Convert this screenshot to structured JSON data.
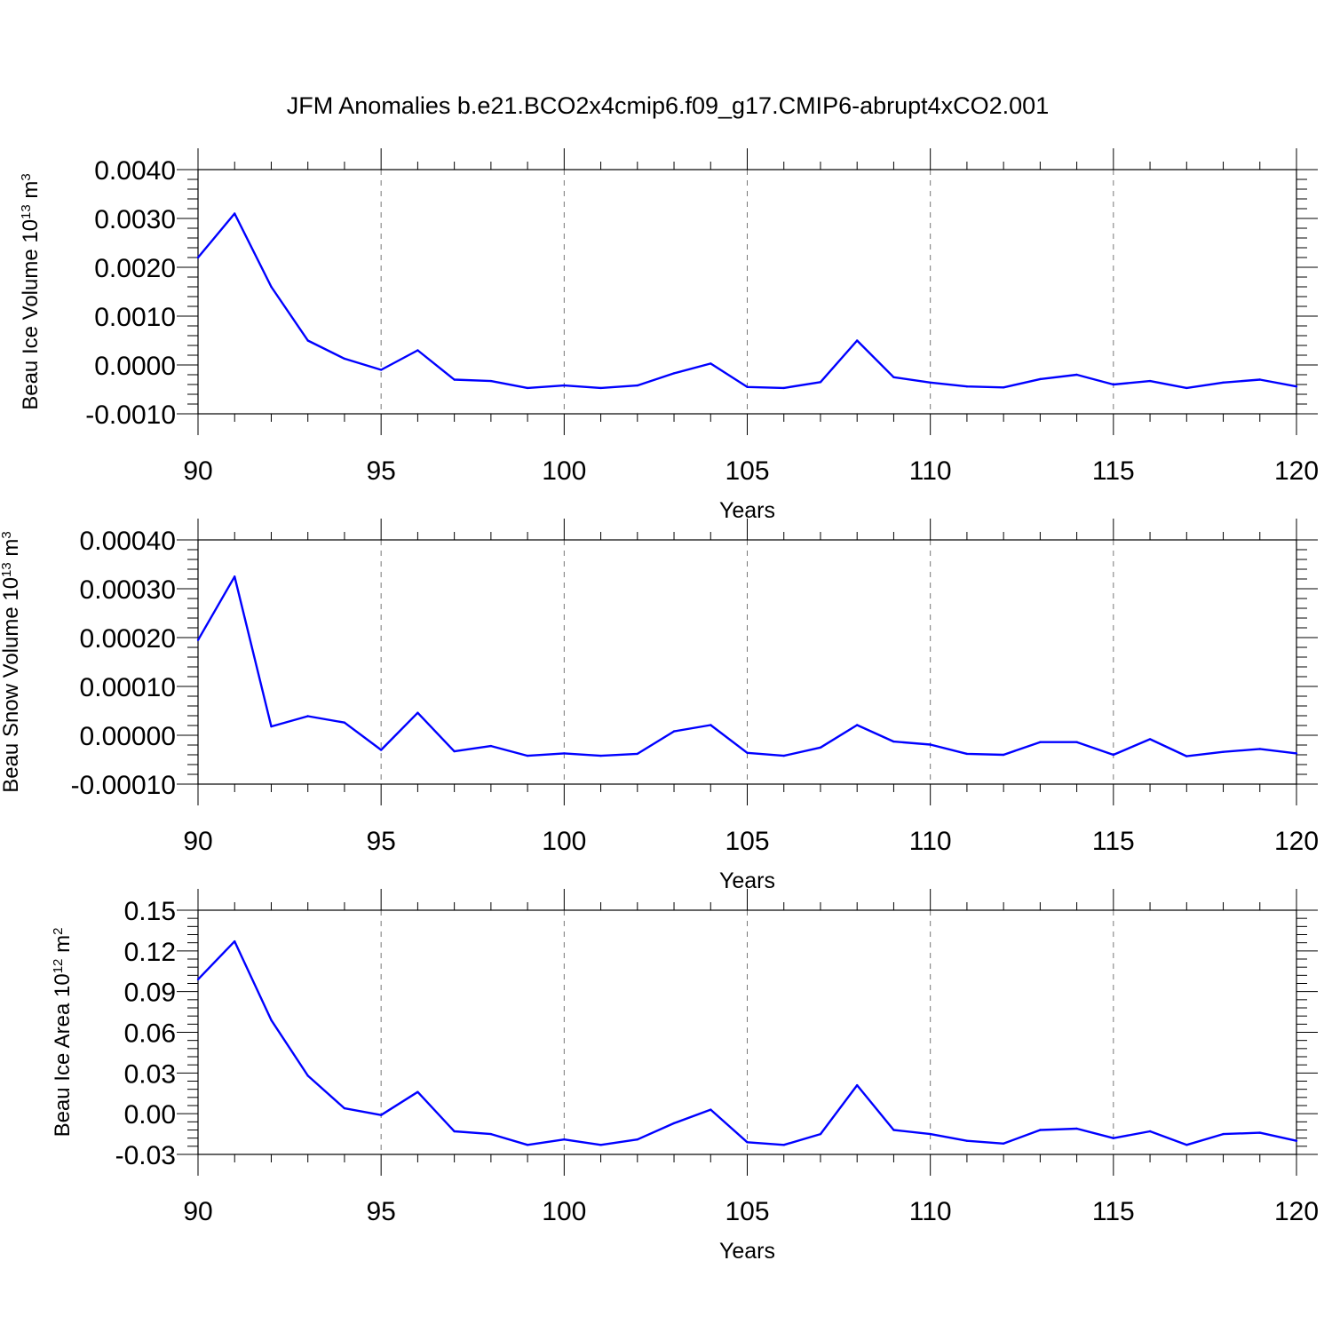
{
  "title": "JFM Anomalies b.e21.BCO2x4cmip6.f09_g17.CMIP6-abrupt4xCO2.001",
  "line_color": "#0000ff",
  "chart_data": [
    {
      "type": "line",
      "xlabel": "Years",
      "ylabel": {
        "text": "Beau Ice Volume 10",
        "sup": "13",
        "unit": " m",
        "unit_sup": "3"
      },
      "xlim": [
        90,
        120
      ],
      "ylim": [
        -0.001,
        0.004
      ],
      "x_ticks": [
        "90",
        "95",
        "100",
        "105",
        "110",
        "115",
        "120"
      ],
      "y_ticks": [
        "-0.0010",
        "0.0000",
        "0.0010",
        "0.0020",
        "0.0030",
        "0.0040"
      ],
      "x": [
        90,
        91,
        92,
        93,
        94,
        95,
        96,
        97,
        98,
        99,
        100,
        101,
        102,
        103,
        104,
        105,
        106,
        107,
        108,
        109,
        110,
        111,
        112,
        113,
        114,
        115,
        116,
        117,
        118,
        119,
        120
      ],
      "values": [
        0.0022,
        0.0031,
        0.0016,
        0.0005,
        0.00013,
        -0.0001,
        0.0003,
        -0.0003,
        -0.00033,
        -0.00047,
        -0.00042,
        -0.00047,
        -0.00042,
        -0.00017,
        3e-05,
        -0.00045,
        -0.00047,
        -0.00035,
        0.0005,
        -0.00025,
        -0.00036,
        -0.00044,
        -0.00046,
        -0.00029,
        -0.0002,
        -0.0004,
        -0.00033,
        -0.00047,
        -0.00036,
        -0.0003,
        -0.00044
      ]
    },
    {
      "type": "line",
      "xlabel": "Years",
      "ylabel": {
        "text": "Beau Snow Volume 10",
        "sup": "13",
        "unit": " m",
        "unit_sup": "3"
      },
      "xlim": [
        90,
        120
      ],
      "ylim": [
        -0.0001,
        0.0004
      ],
      "x_ticks": [
        "90",
        "95",
        "100",
        "105",
        "110",
        "115",
        "120"
      ],
      "y_ticks": [
        "-0.00010",
        "0.00000",
        "0.00010",
        "0.00020",
        "0.00030",
        "0.00040"
      ],
      "x": [
        90,
        91,
        92,
        93,
        94,
        95,
        96,
        97,
        98,
        99,
        100,
        101,
        102,
        103,
        104,
        105,
        106,
        107,
        108,
        109,
        110,
        111,
        112,
        113,
        114,
        115,
        116,
        117,
        118,
        119,
        120
      ],
      "values": [
        0.000195,
        0.000325,
        1.8e-05,
        3.9e-05,
        2.6e-05,
        -3e-05,
        4.6e-05,
        -3.3e-05,
        -2.2e-05,
        -4.2e-05,
        -3.7e-05,
        -4.2e-05,
        -3.8e-05,
        8e-06,
        2.1e-05,
        -3.6e-05,
        -4.2e-05,
        -2.5e-05,
        2.1e-05,
        -1.3e-05,
        -1.9e-05,
        -3.8e-05,
        -4e-05,
        -1.4e-05,
        -1.4e-05,
        -4e-05,
        -8e-06,
        -4.3e-05,
        -3.4e-05,
        -2.8e-05,
        -3.7e-05
      ]
    },
    {
      "type": "line",
      "xlabel": "Years",
      "ylabel": {
        "text": "Beau Ice Area 10",
        "sup": "12",
        "unit": " m",
        "unit_sup": "2"
      },
      "xlim": [
        90,
        120
      ],
      "ylim": [
        -0.03,
        0.15
      ],
      "x_ticks": [
        "90",
        "95",
        "100",
        "105",
        "110",
        "115",
        "120"
      ],
      "y_ticks": [
        "-0.03",
        "0.00",
        "0.03",
        "0.06",
        "0.09",
        "0.12",
        "0.15"
      ],
      "x": [
        90,
        91,
        92,
        93,
        94,
        95,
        96,
        97,
        98,
        99,
        100,
        101,
        102,
        103,
        104,
        105,
        106,
        107,
        108,
        109,
        110,
        111,
        112,
        113,
        114,
        115,
        116,
        117,
        118,
        119,
        120
      ],
      "values": [
        0.099,
        0.127,
        0.069,
        0.028,
        0.004,
        -0.001,
        0.016,
        -0.013,
        -0.015,
        -0.023,
        -0.019,
        -0.023,
        -0.019,
        -0.007,
        0.003,
        -0.021,
        -0.023,
        -0.015,
        0.021,
        -0.012,
        -0.015,
        -0.02,
        -0.022,
        -0.012,
        -0.011,
        -0.018,
        -0.013,
        -0.023,
        -0.015,
        -0.014,
        -0.02
      ]
    }
  ]
}
